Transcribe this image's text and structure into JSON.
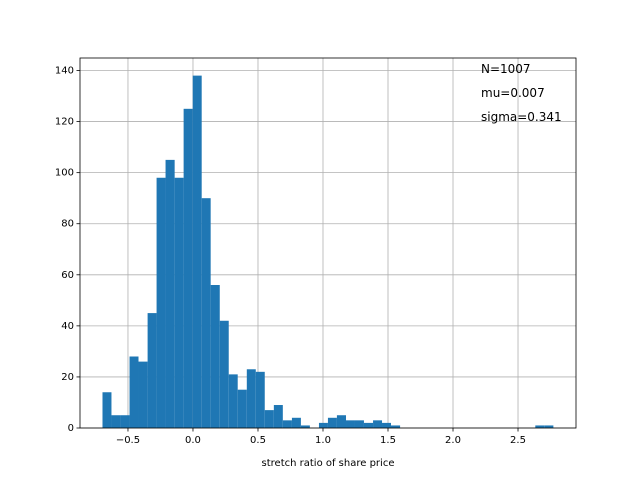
{
  "chart_data": {
    "type": "histogram",
    "xlabel": "stretch ratio of share price",
    "annotations": [
      "N=1007",
      "mu=0.007",
      "sigma=0.341"
    ],
    "bins": [
      -0.696,
      -0.627,
      -0.557,
      -0.488,
      -0.419,
      -0.349,
      -0.28,
      -0.211,
      -0.141,
      -0.072,
      -0.002,
      0.067,
      0.136,
      0.206,
      0.275,
      0.344,
      0.414,
      0.483,
      0.552,
      0.622,
      0.691,
      0.761,
      0.83,
      0.899,
      0.969,
      1.038,
      1.107,
      1.177,
      1.246,
      1.315,
      1.385,
      1.454,
      1.523,
      1.593,
      1.662,
      1.732,
      1.801,
      1.87,
      1.94,
      2.009,
      2.078,
      2.148,
      2.217,
      2.286,
      2.356,
      2.425,
      2.494,
      2.564,
      2.633,
      2.702,
      2.772
    ],
    "counts": [
      14,
      5,
      5,
      28,
      26,
      45,
      98,
      105,
      98,
      125,
      138,
      90,
      56,
      42,
      21,
      15,
      23,
      22,
      7,
      9,
      3,
      4,
      1,
      0,
      2,
      4,
      5,
      3,
      3,
      2,
      3,
      2,
      1,
      0,
      0,
      0,
      0,
      0,
      0,
      0,
      0,
      0,
      0,
      0,
      0,
      0,
      0,
      0,
      1,
      1
    ],
    "color": "#1f77b4",
    "xlim": [
      -0.869,
      2.946
    ],
    "ylim": [
      0,
      144.9
    ],
    "xticks": [
      {
        "value": -0.5,
        "label": "−0.5"
      },
      {
        "value": 0,
        "label": "0.0"
      },
      0.5,
      {
        "value": 1,
        "label": "1.0"
      },
      1.5,
      {
        "value": 2,
        "label": "2.0"
      },
      2.5
    ],
    "yticks": [
      0,
      20,
      40,
      60,
      80,
      100,
      120,
      140
    ],
    "grid": true
  }
}
